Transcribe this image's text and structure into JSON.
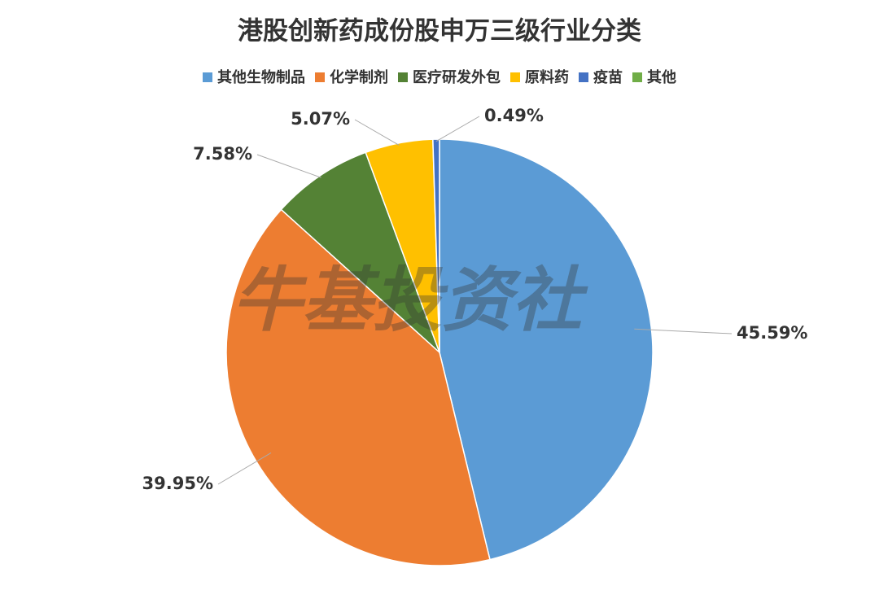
{
  "chart_data": {
    "type": "pie",
    "title": "港股创新药成份股申万三级行业分类",
    "watermark": "牛基投资社",
    "categories": [
      "其他生物制品",
      "化学制剂",
      "医疗研发外包",
      "原料药",
      "疫苗",
      "其他"
    ],
    "values": [
      45.59,
      39.95,
      7.58,
      5.07,
      0.49,
      0
    ],
    "value_labels": [
      "45.59%",
      "39.95%",
      "7.58%",
      "5.07%",
      "0.49%",
      null
    ],
    "colors": [
      "#5b9bd5",
      "#ed7d31",
      "#548235",
      "#ffc000",
      "#4472c4",
      "#70ad47"
    ],
    "legend": "top"
  }
}
